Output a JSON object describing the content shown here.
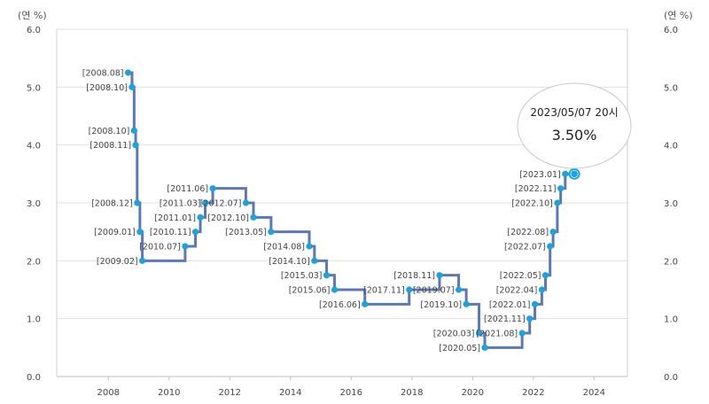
{
  "chart_data": {
    "type": "line",
    "step": true,
    "y_unit_label": "(연 %)",
    "ylim": [
      0,
      6
    ],
    "yticks": [
      "0.0",
      "1.0",
      "2.0",
      "3.0",
      "4.0",
      "5.0",
      "6.0"
    ],
    "xlim": [
      2006.3,
      2025.1
    ],
    "xticks": [
      "2008",
      "2010",
      "2012",
      "2014",
      "2016",
      "2018",
      "2020",
      "2022",
      "2024"
    ],
    "grid": true,
    "line_color": "#5b78b8",
    "point_color": "#1aa3dc",
    "series": [
      {
        "points": [
          {
            "label": "[2008.08]",
            "x": 2008.65,
            "y": 5.25
          },
          {
            "label": "[2008.10]",
            "x": 2008.78,
            "y": 5.0
          },
          {
            "label": "[2008.10]",
            "x": 2008.85,
            "y": 4.25
          },
          {
            "label": "[2008.11]",
            "x": 2008.9,
            "y": 4.0
          },
          {
            "label": "[2008.12]",
            "x": 2008.95,
            "y": 3.0
          },
          {
            "label": "[2009.01]",
            "x": 2009.04,
            "y": 2.5
          },
          {
            "label": "[2009.02]",
            "x": 2009.12,
            "y": 2.0
          },
          {
            "label": "[2010.07]",
            "x": 2010.53,
            "y": 2.25
          },
          {
            "label": "[2010.11]",
            "x": 2010.87,
            "y": 2.5
          },
          {
            "label": "[2011.01]",
            "x": 2011.03,
            "y": 2.75
          },
          {
            "label": "[2011.03]",
            "x": 2011.19,
            "y": 3.0
          },
          {
            "label": "[2011.06]",
            "x": 2011.44,
            "y": 3.25
          },
          {
            "label": "[2012.07]",
            "x": 2012.53,
            "y": 3.0
          },
          {
            "label": "[2012.10]",
            "x": 2012.78,
            "y": 2.75
          },
          {
            "label": "[2013.05]",
            "x": 2013.36,
            "y": 2.5
          },
          {
            "label": "[2014.08]",
            "x": 2014.62,
            "y": 2.25
          },
          {
            "label": "[2014.10]",
            "x": 2014.79,
            "y": 2.0
          },
          {
            "label": "[2015.03]",
            "x": 2015.19,
            "y": 1.75
          },
          {
            "label": "[2015.06]",
            "x": 2015.45,
            "y": 1.5
          },
          {
            "label": "[2016.06]",
            "x": 2016.45,
            "y": 1.25
          },
          {
            "label": "[2017.11]",
            "x": 2017.91,
            "y": 1.5
          },
          {
            "label": "[2018.11]",
            "x": 2018.91,
            "y": 1.75
          },
          {
            "label": "[2019.07]",
            "x": 2019.54,
            "y": 1.5
          },
          {
            "label": "[2019.10]",
            "x": 2019.79,
            "y": 1.25
          },
          {
            "label": "[2020.03]",
            "x": 2020.21,
            "y": 0.75
          },
          {
            "label": "[2020.05]",
            "x": 2020.4,
            "y": 0.5
          },
          {
            "label": "[2021.08]",
            "x": 2021.63,
            "y": 0.75
          },
          {
            "label": "[2021.11]",
            "x": 2021.88,
            "y": 1.0
          },
          {
            "label": "[2022.01]",
            "x": 2022.05,
            "y": 1.25
          },
          {
            "label": "[2022.04]",
            "x": 2022.28,
            "y": 1.5
          },
          {
            "label": "[2022.05]",
            "x": 2022.4,
            "y": 1.75
          },
          {
            "label": "[2022.07]",
            "x": 2022.55,
            "y": 2.25
          },
          {
            "label": "[2022.08]",
            "x": 2022.65,
            "y": 2.5
          },
          {
            "label": "[2022.10]",
            "x": 2022.79,
            "y": 3.0
          },
          {
            "label": "[2022.11]",
            "x": 2022.9,
            "y": 3.25
          },
          {
            "label": "[2023.01]",
            "x": 2023.05,
            "y": 3.5
          }
        ],
        "current": {
          "x": 2023.35,
          "y": 3.5
        }
      }
    ],
    "tooltip": {
      "date": "2023/05/07 20시",
      "value": "3.50%"
    }
  }
}
